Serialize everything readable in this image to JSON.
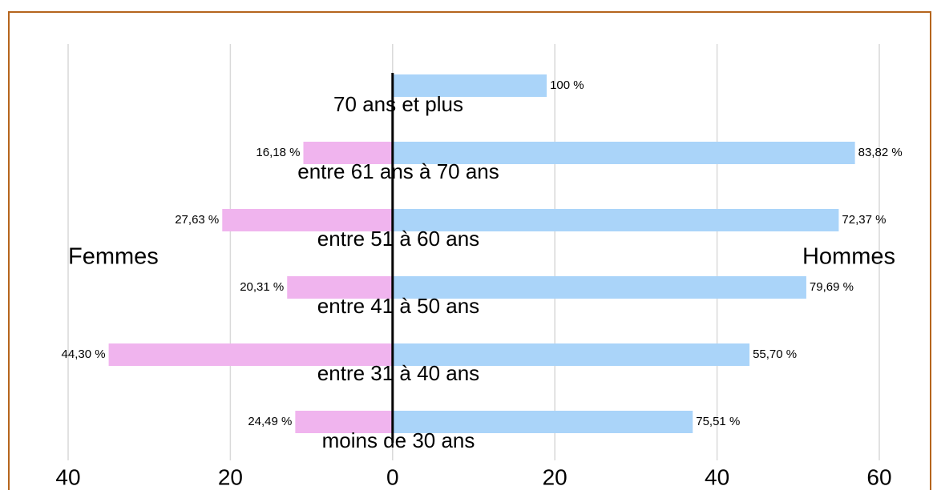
{
  "chart_data": {
    "type": "pyramid",
    "categories": [
      "70 ans et plus",
      "entre 61 ans à 70 ans",
      "entre 51 à 60 ans",
      "entre 41 à 50 ans",
      "entre 31 à 40 ans",
      "moins de 30 ans"
    ],
    "series": [
      {
        "name": "Femmes",
        "color": "#f0b4ee",
        "values": [
          0,
          -11,
          -21,
          -13,
          -35,
          -12
        ],
        "value_labels": [
          null,
          "16,18 %",
          "27,63 %",
          "20,31 %",
          "44,30 %",
          "24,49 %"
        ]
      },
      {
        "name": "Hommes",
        "color": "#aad4f9",
        "values": [
          19,
          57,
          55,
          51,
          44,
          37
        ],
        "value_labels": [
          "100 %",
          "83,82 %",
          "72,37 %",
          "79,69 %",
          "55,70 %",
          "75,51 %"
        ]
      }
    ],
    "xlim": [
      -40,
      60
    ],
    "xticks": [
      {
        "value": -40,
        "label": "40"
      },
      {
        "value": -20,
        "label": "20"
      },
      0,
      20,
      40,
      60
    ],
    "grid": true
  }
}
